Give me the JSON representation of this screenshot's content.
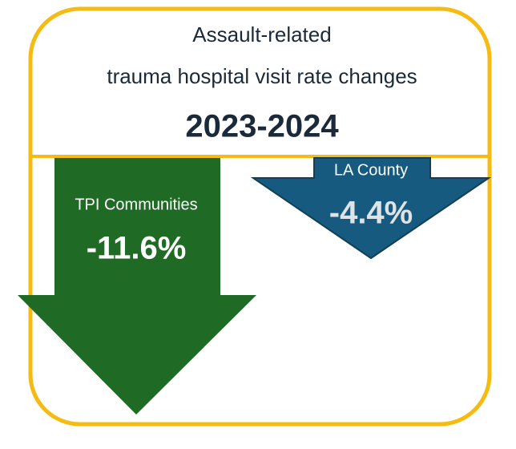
{
  "header": {
    "title_lines": [
      "Assault-related",
      "trauma hospital visit rate changes"
    ],
    "period": "2023-2024"
  },
  "items": [
    {
      "label": "TPI Communities",
      "value": "-11.6%"
    },
    {
      "label": "LA County",
      "value": "-4.4%"
    }
  ]
}
